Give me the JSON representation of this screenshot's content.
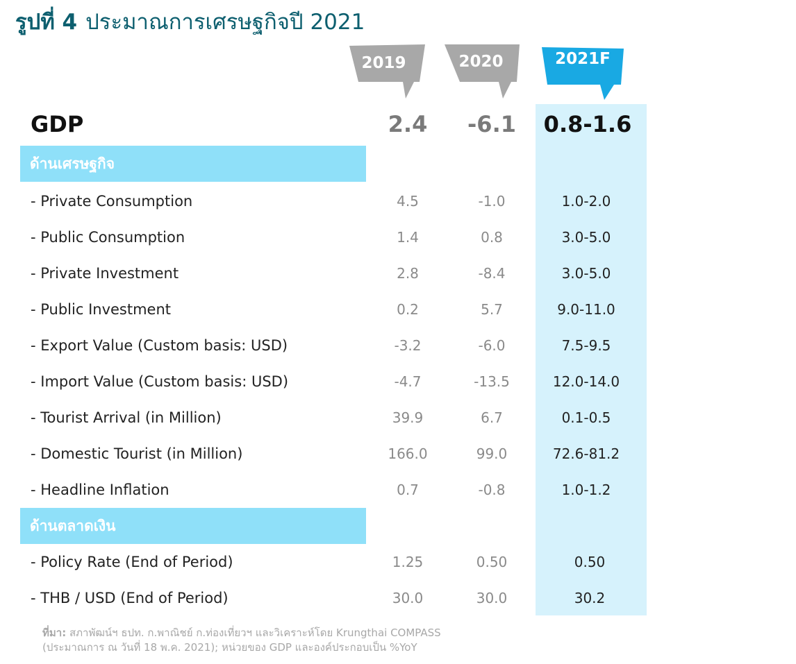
{
  "title": {
    "number": "รูปที่ 4",
    "text": "ประมาณการเศรษฐกิจปี 2021"
  },
  "colors": {
    "title": "#0d5f6f",
    "tag_gray": "#a8a8a8",
    "tag_blue": "#19a9e3",
    "section": "#8fe0f9",
    "highlight": "#d6f2fc"
  },
  "chart_data": {
    "type": "table",
    "columns": [
      "2019",
      "2020",
      "2021F"
    ],
    "gdp": {
      "label": "GDP",
      "values": [
        "2.4",
        "-6.1",
        "0.8-1.6"
      ]
    },
    "sections": [
      {
        "title": "ด้านเศรษฐกิจ",
        "rows": [
          {
            "label": "- Private Consumption",
            "values": [
              "4.5",
              "-1.0",
              "1.0-2.0"
            ]
          },
          {
            "label": "- Public Consumption",
            "values": [
              "1.4",
              "0.8",
              "3.0-5.0"
            ]
          },
          {
            "label": "- Private Investment",
            "values": [
              "2.8",
              "-8.4",
              "3.0-5.0"
            ]
          },
          {
            "label": "- Public Investment",
            "values": [
              "0.2",
              "5.7",
              "9.0-11.0"
            ]
          },
          {
            "label": "- Export Value (Custom basis: USD)",
            "values": [
              "-3.2",
              "-6.0",
              "7.5-9.5"
            ]
          },
          {
            "label": "- Import Value (Custom basis: USD)",
            "values": [
              "-4.7",
              "-13.5",
              "12.0-14.0"
            ]
          },
          {
            "label": "- Tourist Arrival (in Million)",
            "values": [
              "39.9",
              "6.7",
              "0.1-0.5"
            ]
          },
          {
            "label": "- Domestic Tourist (in Million)",
            "values": [
              "166.0",
              "99.0",
              "72.6-81.2"
            ]
          },
          {
            "label": "- Headline Inflation",
            "values": [
              "0.7",
              "-0.8",
              "1.0-1.2"
            ]
          }
        ]
      },
      {
        "title": "ด้านตลาดเงิน",
        "rows": [
          {
            "label": "- Policy Rate (End of Period)",
            "values": [
              "1.25",
              "0.50",
              "0.50"
            ]
          },
          {
            "label": "- THB / USD (End of Period)",
            "values": [
              "30.0",
              "30.0",
              "30.2"
            ]
          }
        ]
      }
    ]
  },
  "source": {
    "label": "ที่มา:",
    "line1": "สภาพัฒน์ฯ ธปท. ก.พาณิชย์ ก.ท่องเที่ยวฯ และวิเคราะห์โดย Krungthai COMPASS",
    "line2": "(ประมาณการ ณ วันที่ 18 พ.ค. 2021); หน่วยของ GDP และองค์ประกอบเป็น %YoY"
  }
}
